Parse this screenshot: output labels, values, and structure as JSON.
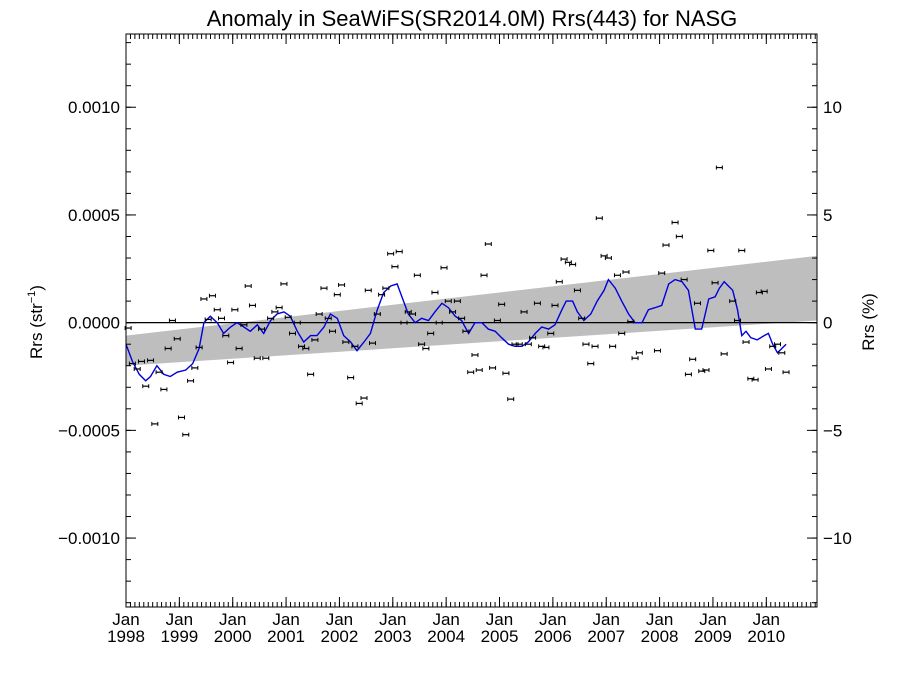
{
  "chart_data": {
    "type": "scatter",
    "title": "Anomaly in SeaWiFS(SR2014.0M) Rrs(443) for NASG",
    "ylabel_left": "Rrs (str",
    "ylabel_left_sup": "−1",
    "ylabel_left_close": ")",
    "ylabel_right": "Rrs (%)",
    "xlim": [
      1998.0,
      2010.95
    ],
    "ylim": [
      -0.00132,
      0.00134
    ],
    "y2lim": [
      -13.2,
      13.4
    ],
    "grid": false,
    "yticks_left": [
      {
        "value": 0.001,
        "label": "0.0010"
      },
      {
        "value": 0.0005,
        "label": "0.0005"
      },
      {
        "value": 0.0,
        "label": "0.0000"
      },
      {
        "value": -0.0005,
        "label": "−0.0005"
      },
      {
        "value": -0.001,
        "label": "−0.0010"
      }
    ],
    "yticks_right": [
      {
        "value": 10,
        "label": "10"
      },
      {
        "value": 5,
        "label": "5"
      },
      {
        "value": 0,
        "label": "0"
      },
      {
        "value": -5,
        "label": "−5"
      },
      {
        "value": -10,
        "label": "−10"
      }
    ],
    "xticks": [
      {
        "value": 1998,
        "month": "Jan",
        "year": "1998"
      },
      {
        "value": 1999,
        "month": "Jan",
        "year": "1999"
      },
      {
        "value": 2000,
        "month": "Jan",
        "year": "2000"
      },
      {
        "value": 2001,
        "month": "Jan",
        "year": "2001"
      },
      {
        "value": 2002,
        "month": "Jan",
        "year": "2002"
      },
      {
        "value": 2003,
        "month": "Jan",
        "year": "2003"
      },
      {
        "value": 2004,
        "month": "Jan",
        "year": "2004"
      },
      {
        "value": 2005,
        "month": "Jan",
        "year": "2005"
      },
      {
        "value": 2006,
        "month": "Jan",
        "year": "2006"
      },
      {
        "value": 2007,
        "month": "Jan",
        "year": "2007"
      },
      {
        "value": 2008,
        "month": "Jan",
        "year": "2008"
      },
      {
        "value": 2009,
        "month": "Jan",
        "year": "2009"
      },
      {
        "value": 2010,
        "month": "Jan",
        "year": "2010"
      }
    ],
    "trend_band": {
      "start": 1998.0,
      "end": 2010.95,
      "upper": [
        -6e-05,
        0.00031
      ],
      "lower": [
        -0.0002,
        1e-05
      ],
      "color": "#bebebe"
    },
    "colors": {
      "points": "#000000",
      "smooth": "#0000dd",
      "band": "#bebebe",
      "zero": "#000000"
    },
    "points": [
      {
        "x": 1998.04,
        "y": -2.5e-05
      },
      {
        "x": 1998.12,
        "y": -0.00019
      },
      {
        "x": 1998.21,
        "y": -0.000215
      },
      {
        "x": 1998.29,
        "y": -0.00018
      },
      {
        "x": 1998.37,
        "y": -0.000295
      },
      {
        "x": 1998.46,
        "y": -0.000175
      },
      {
        "x": 1998.54,
        "y": -0.00047
      },
      {
        "x": 1998.62,
        "y": -0.00023
      },
      {
        "x": 1998.71,
        "y": -0.00031
      },
      {
        "x": 1998.79,
        "y": -0.00012
      },
      {
        "x": 1998.87,
        "y": 1e-05
      },
      {
        "x": 1998.96,
        "y": -7.5e-05
      },
      {
        "x": 1999.04,
        "y": -0.00044
      },
      {
        "x": 1999.12,
        "y": -0.00052
      },
      {
        "x": 1999.21,
        "y": -0.00027
      },
      {
        "x": 1999.29,
        "y": -0.00021
      },
      {
        "x": 1999.37,
        "y": -0.000115
      },
      {
        "x": 1999.46,
        "y": 0.00011
      },
      {
        "x": 1999.54,
        "y": 1.5e-05
      },
      {
        "x": 1999.62,
        "y": 0.000125
      },
      {
        "x": 1999.71,
        "y": 6e-05
      },
      {
        "x": 1999.79,
        "y": 2e-05
      },
      {
        "x": 1999.87,
        "y": -6e-05
      },
      {
        "x": 1999.96,
        "y": -0.000185
      },
      {
        "x": 2000.04,
        "y": 6e-05
      },
      {
        "x": 2000.12,
        "y": -0.00012
      },
      {
        "x": 2000.21,
        "y": -1e-05
      },
      {
        "x": 2000.29,
        "y": 0.00017
      },
      {
        "x": 2000.37,
        "y": 8e-05
      },
      {
        "x": 2000.46,
        "y": -0.000165
      },
      {
        "x": 2000.54,
        "y": -3e-05
      },
      {
        "x": 2000.62,
        "y": -0.000165
      },
      {
        "x": 2000.71,
        "y": 2e-05
      },
      {
        "x": 2000.79,
        "y": 5e-05
      },
      {
        "x": 2000.87,
        "y": 7e-05
      },
      {
        "x": 2000.96,
        "y": 0.00018
      },
      {
        "x": 2001.04,
        "y": 2.5e-05
      },
      {
        "x": 2001.12,
        "y": -5e-05
      },
      {
        "x": 2001.21,
        "y": 0.0
      },
      {
        "x": 2001.29,
        "y": -0.00011
      },
      {
        "x": 2001.37,
        "y": -0.00012
      },
      {
        "x": 2001.46,
        "y": -0.00024
      },
      {
        "x": 2001.54,
        "y": -8e-05
      },
      {
        "x": 2001.62,
        "y": 4e-05
      },
      {
        "x": 2001.71,
        "y": 0.00016
      },
      {
        "x": 2001.79,
        "y": 2e-05
      },
      {
        "x": 2001.87,
        "y": -4e-05
      },
      {
        "x": 2001.96,
        "y": 0.00013
      },
      {
        "x": 2002.04,
        "y": 0.000175
      },
      {
        "x": 2002.12,
        "y": -9e-05
      },
      {
        "x": 2002.21,
        "y": -0.000255
      },
      {
        "x": 2002.29,
        "y": -0.00011
      },
      {
        "x": 2002.37,
        "y": -0.000375
      },
      {
        "x": 2002.46,
        "y": -0.00035
      },
      {
        "x": 2002.54,
        "y": 0.00015
      },
      {
        "x": 2002.62,
        "y": -9.5e-05
      },
      {
        "x": 2002.71,
        "y": 4e-05
      },
      {
        "x": 2002.79,
        "y": 0.00013
      },
      {
        "x": 2002.87,
        "y": 0.00016
      },
      {
        "x": 2002.96,
        "y": 0.00032
      },
      {
        "x": 2003.04,
        "y": 0.00026
      },
      {
        "x": 2003.12,
        "y": 0.00033
      },
      {
        "x": 2003.21,
        "y": 0.0
      },
      {
        "x": 2003.29,
        "y": 5e-05
      },
      {
        "x": 2003.37,
        "y": 4e-05
      },
      {
        "x": 2003.46,
        "y": 0.00022
      },
      {
        "x": 2003.54,
        "y": -0.0001
      },
      {
        "x": 2003.62,
        "y": -0.00012
      },
      {
        "x": 2003.71,
        "y": -5e-05
      },
      {
        "x": 2003.79,
        "y": 0.00014
      },
      {
        "x": 2003.87,
        "y": 0.0
      },
      {
        "x": 2003.96,
        "y": 0.000255
      },
      {
        "x": 2004.04,
        "y": 0.0001
      },
      {
        "x": 2004.12,
        "y": 5e-05
      },
      {
        "x": 2004.21,
        "y": 0.0001
      },
      {
        "x": 2004.29,
        "y": 2e-05
      },
      {
        "x": 2004.37,
        "y": -4e-05
      },
      {
        "x": 2004.46,
        "y": -0.00023
      },
      {
        "x": 2004.54,
        "y": -0.00015
      },
      {
        "x": 2004.62,
        "y": -0.00022
      },
      {
        "x": 2004.71,
        "y": 0.00022
      },
      {
        "x": 2004.79,
        "y": 0.000365
      },
      {
        "x": 2004.87,
        "y": -0.00021
      },
      {
        "x": 2004.96,
        "y": 1e-05
      },
      {
        "x": 2005.04,
        "y": 8.5e-05
      },
      {
        "x": 2005.12,
        "y": -0.000235
      },
      {
        "x": 2005.21,
        "y": -0.000355
      },
      {
        "x": 2005.29,
        "y": -0.0001
      },
      {
        "x": 2005.37,
        "y": -0.0001
      },
      {
        "x": 2005.46,
        "y": 5e-05
      },
      {
        "x": 2005.54,
        "y": -0.0001
      },
      {
        "x": 2005.62,
        "y": -7e-05
      },
      {
        "x": 2005.71,
        "y": 9e-05
      },
      {
        "x": 2005.79,
        "y": -0.00011
      },
      {
        "x": 2005.87,
        "y": -0.000115
      },
      {
        "x": 2005.96,
        "y": -5e-05
      },
      {
        "x": 2006.04,
        "y": 8e-05
      },
      {
        "x": 2006.12,
        "y": 0.00019
      },
      {
        "x": 2006.21,
        "y": 0.000295
      },
      {
        "x": 2006.29,
        "y": 0.00028
      },
      {
        "x": 2006.37,
        "y": 0.00027
      },
      {
        "x": 2006.46,
        "y": 0.00015
      },
      {
        "x": 2006.54,
        "y": 2e-05
      },
      {
        "x": 2006.62,
        "y": -0.0001
      },
      {
        "x": 2006.71,
        "y": -0.00019
      },
      {
        "x": 2006.79,
        "y": -0.00011
      },
      {
        "x": 2006.87,
        "y": 0.000485
      },
      {
        "x": 2006.96,
        "y": 0.00031
      },
      {
        "x": 2007.04,
        "y": 0.0003
      },
      {
        "x": 2007.12,
        "y": -0.00011
      },
      {
        "x": 2007.21,
        "y": 0.00022
      },
      {
        "x": 2007.29,
        "y": -5e-05
      },
      {
        "x": 2007.37,
        "y": 0.000235
      },
      {
        "x": 2007.46,
        "y": 5e-06
      },
      {
        "x": 2007.54,
        "y": -0.000165
      },
      {
        "x": 2007.62,
        "y": -0.00014
      },
      {
        "x": 2007.96,
        "y": -0.00013
      },
      {
        "x": 2008.04,
        "y": 0.00023
      },
      {
        "x": 2008.12,
        "y": 0.00036
      },
      {
        "x": 2008.29,
        "y": 0.000465
      },
      {
        "x": 2008.37,
        "y": 0.0004
      },
      {
        "x": 2008.46,
        "y": 0.0002
      },
      {
        "x": 2008.54,
        "y": -0.00024
      },
      {
        "x": 2008.62,
        "y": -0.00017
      },
      {
        "x": 2008.71,
        "y": 9e-05
      },
      {
        "x": 2008.79,
        "y": -0.000225
      },
      {
        "x": 2008.87,
        "y": -0.00022
      },
      {
        "x": 2008.96,
        "y": 0.000335
      },
      {
        "x": 2009.04,
        "y": 0.000185
      },
      {
        "x": 2009.12,
        "y": 0.00072
      },
      {
        "x": 2009.21,
        "y": -0.000145
      },
      {
        "x": 2009.37,
        "y": 0.0001
      },
      {
        "x": 2009.46,
        "y": 1e-05
      },
      {
        "x": 2009.54,
        "y": 0.000335
      },
      {
        "x": 2009.62,
        "y": -9e-05
      },
      {
        "x": 2009.71,
        "y": -0.00026
      },
      {
        "x": 2009.79,
        "y": -0.000265
      },
      {
        "x": 2009.87,
        "y": 0.00014
      },
      {
        "x": 2009.96,
        "y": 0.000145
      },
      {
        "x": 2010.04,
        "y": -0.000215
      },
      {
        "x": 2010.12,
        "y": -0.00011
      },
      {
        "x": 2010.21,
        "y": -0.0001
      },
      {
        "x": 2010.29,
        "y": -0.00014
      },
      {
        "x": 2010.37,
        "y": -0.00023
      }
    ],
    "smooth_line": [
      [
        1998.0,
        -0.0001
      ],
      [
        1998.12,
        -0.00018
      ],
      [
        1998.25,
        -0.00024
      ],
      [
        1998.37,
        -0.00027
      ],
      [
        1998.46,
        -0.00025
      ],
      [
        1998.58,
        -0.0002
      ],
      [
        1998.71,
        -0.00024
      ],
      [
        1998.83,
        -0.00025
      ],
      [
        1998.96,
        -0.00023
      ],
      [
        1999.12,
        -0.00022
      ],
      [
        1999.25,
        -0.00019
      ],
      [
        1999.37,
        -0.00012
      ],
      [
        1999.46,
        -0.0
      ],
      [
        1999.58,
        3e-05
      ],
      [
        1999.71,
        0.0
      ],
      [
        1999.83,
        -5e-05
      ],
      [
        1999.96,
        -2e-05
      ],
      [
        2000.08,
        0.0
      ],
      [
        2000.21,
        -2e-05
      ],
      [
        2000.33,
        -4e-05
      ],
      [
        2000.46,
        -1e-05
      ],
      [
        2000.58,
        -5e-05
      ],
      [
        2000.71,
        1e-05
      ],
      [
        2000.83,
        4e-05
      ],
      [
        2000.96,
        5e-05
      ],
      [
        2001.08,
        3e-05
      ],
      [
        2001.21,
        -4e-05
      ],
      [
        2001.33,
        -9e-05
      ],
      [
        2001.46,
        -6e-05
      ],
      [
        2001.58,
        -6e-05
      ],
      [
        2001.71,
        -2e-05
      ],
      [
        2001.83,
        4e-05
      ],
      [
        2001.96,
        2e-05
      ],
      [
        2002.08,
        -6e-05
      ],
      [
        2002.21,
        -9e-05
      ],
      [
        2002.33,
        -0.00013
      ],
      [
        2002.46,
        -9e-05
      ],
      [
        2002.58,
        -5e-05
      ],
      [
        2002.71,
        6e-05
      ],
      [
        2002.83,
        0.00014
      ],
      [
        2002.96,
        0.00017
      ],
      [
        2003.08,
        0.00018
      ],
      [
        2003.17,
        0.00012
      ],
      [
        2003.29,
        4e-05
      ],
      [
        2003.42,
        0.0
      ],
      [
        2003.54,
        2e-05
      ],
      [
        2003.67,
        1e-05
      ],
      [
        2003.79,
        5e-05
      ],
      [
        2003.92,
        9e-05
      ],
      [
        2004.04,
        7e-05
      ],
      [
        2004.17,
        3e-05
      ],
      [
        2004.29,
        1e-05
      ],
      [
        2004.42,
        -5e-05
      ],
      [
        2004.54,
        0.0
      ],
      [
        2004.67,
        0.0
      ],
      [
        2004.79,
        -3e-05
      ],
      [
        2004.92,
        -4e-05
      ],
      [
        2005.04,
        -7e-05
      ],
      [
        2005.17,
        -0.0001
      ],
      [
        2005.29,
        -0.00011
      ],
      [
        2005.42,
        -0.00011
      ],
      [
        2005.54,
        -9e-05
      ],
      [
        2005.67,
        -5e-05
      ],
      [
        2005.79,
        -2e-05
      ],
      [
        2005.92,
        -3e-05
      ],
      [
        2006.04,
        -1e-05
      ],
      [
        2006.17,
        6e-05
      ],
      [
        2006.25,
        0.0001
      ],
      [
        2006.37,
        0.0001
      ],
      [
        2006.46,
        5e-05
      ],
      [
        2006.58,
        1e-05
      ],
      [
        2006.71,
        4e-05
      ],
      [
        2006.83,
        0.0001
      ],
      [
        2006.96,
        0.00015
      ],
      [
        2007.04,
        0.0002
      ],
      [
        2007.17,
        0.00016
      ],
      [
        2007.29,
        0.0001
      ],
      [
        2007.42,
        4e-05
      ],
      [
        2007.54,
        0.0
      ],
      [
        2007.67,
        0.0
      ],
      [
        2007.79,
        6e-05
      ],
      [
        2007.92,
        7e-05
      ],
      [
        2008.04,
        8e-05
      ],
      [
        2008.17,
        0.00018
      ],
      [
        2008.29,
        0.0002
      ],
      [
        2008.42,
        0.00019
      ],
      [
        2008.54,
        0.00015
      ],
      [
        2008.67,
        -3e-05
      ],
      [
        2008.79,
        -3e-05
      ],
      [
        2008.92,
        0.00011
      ],
      [
        2009.04,
        0.00012
      ],
      [
        2009.12,
        0.00016
      ],
      [
        2009.21,
        0.00019
      ],
      [
        2009.29,
        0.00017
      ],
      [
        2009.37,
        0.00015
      ],
      [
        2009.46,
        6e-05
      ],
      [
        2009.54,
        -6e-05
      ],
      [
        2009.62,
        -4e-05
      ],
      [
        2009.71,
        -7e-05
      ],
      [
        2009.83,
        -8e-05
      ],
      [
        2009.96,
        -6e-05
      ],
      [
        2010.04,
        -5e-05
      ],
      [
        2010.12,
        -0.0001
      ],
      [
        2010.21,
        -0.00014
      ],
      [
        2010.29,
        -0.00012
      ],
      [
        2010.37,
        -0.0001
      ]
    ]
  }
}
